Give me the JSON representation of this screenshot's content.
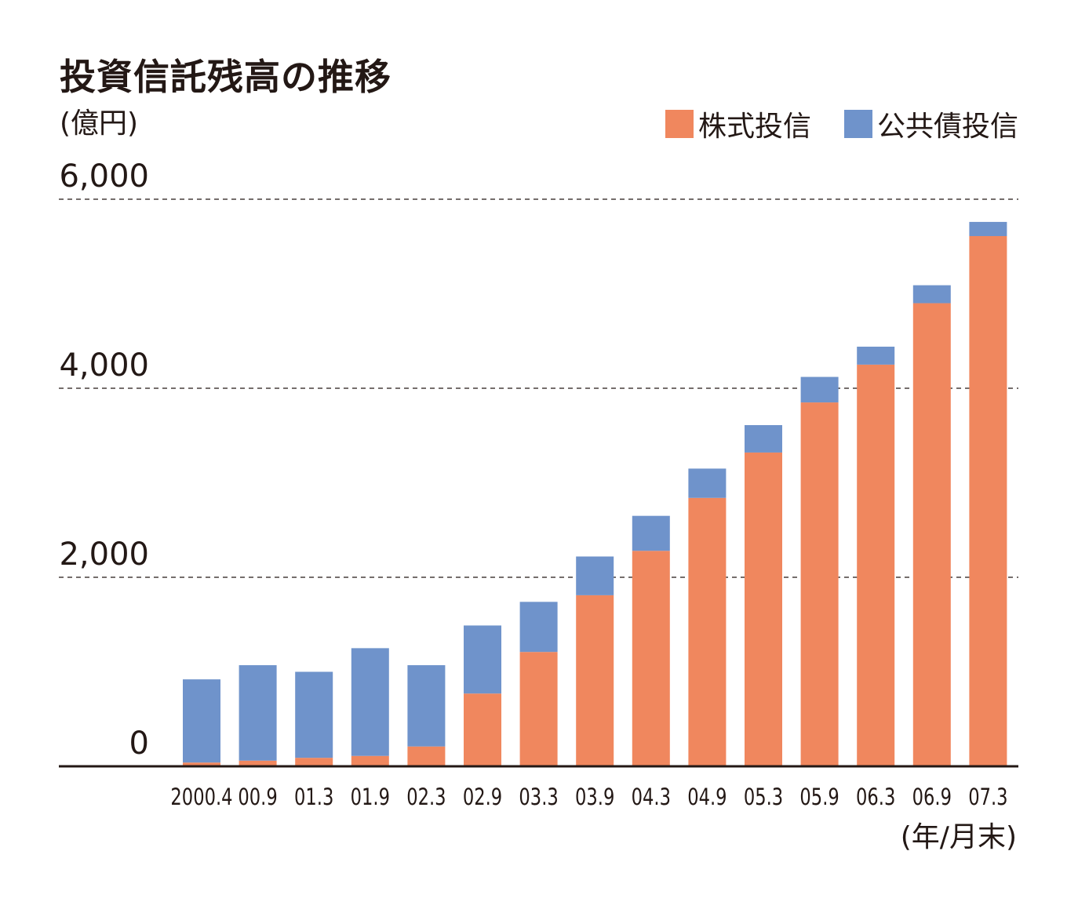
{
  "chart_data": {
    "type": "bar",
    "stacked": true,
    "title": "投資信託残高の推移",
    "ylabel": "(億円)",
    "xlabel": "(年/月末)",
    "ylim": [
      0,
      6000
    ],
    "yticks": [
      "0",
      "2,000",
      "4,000",
      "6,000"
    ],
    "ytick_values": [
      0,
      2000,
      4000,
      6000
    ],
    "grid": true,
    "legend_position": "top-right",
    "categories": [
      "2000.4",
      "00.9",
      "01.3",
      "01.9",
      "02.3",
      "02.9",
      "03.3",
      "03.9",
      "04.3",
      "04.9",
      "05.3",
      "05.9",
      "06.3",
      "06.9",
      "07.3"
    ],
    "series": [
      {
        "name": "株式投信",
        "color": "#f0875e",
        "values": [
          40,
          60,
          90,
          110,
          210,
          770,
          1210,
          1810,
          2280,
          2840,
          3320,
          3850,
          4250,
          4900,
          5610
        ]
      },
      {
        "name": "公共債投信",
        "color": "#6f93cb",
        "values": [
          880,
          1010,
          910,
          1140,
          860,
          720,
          530,
          410,
          370,
          310,
          290,
          270,
          190,
          190,
          150
        ]
      }
    ]
  }
}
